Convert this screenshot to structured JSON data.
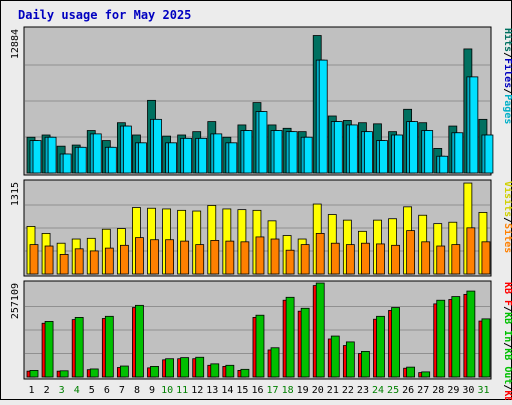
{
  "chart_data": {
    "title": "Daily usage for May 2025",
    "type": "bar",
    "categories": [
      "1",
      "2",
      "3",
      "4",
      "5",
      "6",
      "7",
      "8",
      "9",
      "10",
      "11",
      "12",
      "13",
      "14",
      "15",
      "16",
      "17",
      "18",
      "19",
      "20",
      "21",
      "22",
      "23",
      "24",
      "25",
      "26",
      "27",
      "28",
      "29",
      "30",
      "31"
    ],
    "weekend_days": [
      "3",
      "4",
      "10",
      "11",
      "17",
      "18",
      "24",
      "25",
      "31"
    ],
    "colors": {
      "background": "#ececec",
      "panel": "#c0c0c0",
      "title": "#0000c0",
      "hits": "#007060",
      "files": "#00b0c8",
      "pages": "#00e0ff",
      "visits": "#ffff00",
      "sites": "#ff8000",
      "kb_in": "#00c000",
      "kb_out": "#00ff00",
      "kb_f": "#ff0000",
      "weekday_label": "#000000",
      "weekend_label": "#008000"
    },
    "panels": [
      {
        "name": "hits-files-pages",
        "max_label": "12884",
        "max": 12884,
        "legend": [
          {
            "text": "Hits",
            "color": "#007060"
          },
          {
            "text": "/",
            "color": "#000000"
          },
          {
            "text": "Files",
            "color": "#0000c0"
          },
          {
            "text": "/",
            "color": "#000000"
          },
          {
            "text": "Pages",
            "color": "#00b0c8"
          }
        ],
        "series": [
          {
            "name": "Hits",
            "color": "#007060",
            "values": [
              3200,
              3400,
              2400,
              2500,
              3800,
              2900,
              4500,
              3400,
              6500,
              3300,
              3400,
              3700,
              4600,
              3200,
              4300,
              6300,
              4300,
              4000,
              3700,
              12300,
              5100,
              4700,
              4500,
              4400,
              3700,
              5700,
              4500,
              2200,
              4200,
              11100,
              4800
            ]
          },
          {
            "name": "Files",
            "color": "#00b0c8",
            "values": [
              2900,
              3200,
              1700,
              2300,
              3500,
              2300,
              4200,
              2700,
              4800,
              2700,
              3100,
              3100,
              3500,
              2700,
              3800,
              5500,
              3800,
              3700,
              3200,
              10100,
              4600,
              4300,
              3700,
              2900,
              3400,
              4600,
              3800,
              1500,
              3600,
              8600,
              3400
            ]
          },
          {
            "name": "Pages",
            "color": "#00e0ff",
            "values": [
              2900,
              3200,
              1700,
              2300,
              3500,
              2300,
              4200,
              2700,
              4800,
              2700,
              3100,
              3100,
              3500,
              2700,
              3800,
              5500,
              3800,
              3700,
              3200,
              10100,
              4600,
              4300,
              3700,
              2900,
              3400,
              4600,
              3800,
              1500,
              3600,
              8600,
              3400
            ]
          }
        ]
      },
      {
        "name": "visits-sites",
        "max_label": "1315",
        "max": 1315,
        "legend": [
          {
            "text": "Visits",
            "color": "#d0d000"
          },
          {
            "text": "/",
            "color": "#000000"
          },
          {
            "text": "Sites",
            "color": "#ff8000"
          }
        ],
        "series": [
          {
            "name": "Visits",
            "color": "#ffff00",
            "values": [
              680,
              580,
              440,
              500,
              510,
              640,
              650,
              950,
              940,
              930,
              910,
              900,
              980,
              930,
              920,
              910,
              760,
              550,
              500,
              1000,
              850,
              770,
              610,
              770,
              790,
              960,
              840,
              720,
              740,
              1300,
              880
            ]
          },
          {
            "name": "Sites",
            "color": "#ff8000",
            "values": [
              420,
              400,
              280,
              360,
              330,
              370,
              410,
              520,
              490,
              490,
              470,
              420,
              480,
              470,
              460,
              530,
              500,
              340,
              420,
              580,
              440,
              420,
              440,
              430,
              410,
              620,
              460,
              400,
              420,
              660,
              460
            ]
          }
        ]
      },
      {
        "name": "kb",
        "max_label": "257109",
        "max": 257109,
        "legend": [
          {
            "text": "KB F",
            "color": "#ff0000"
          },
          {
            "text": "/",
            "color": "#000000"
          },
          {
            "text": "KB In",
            "color": "#00c000"
          },
          {
            "text": "/",
            "color": "#000000"
          },
          {
            "text": "KB Out",
            "color": "#00c000"
          },
          {
            "text": "/",
            "color": "#000000"
          },
          {
            "text": "KB F",
            "color": "#ff0000"
          }
        ],
        "series": [
          {
            "name": "KB F",
            "color": "#ff0000",
            "values": [
              16000,
              147000,
              16000,
              157000,
              20000,
              160000,
              26000,
              190000,
              25000,
              47000,
              50000,
              50000,
              32000,
              29000,
              18000,
              163000,
              74000,
              210000,
              180000,
              250000,
              104000,
              86000,
              64000,
              158000,
              182000,
              24000,
              12000,
              200000,
              212000,
              226000,
              153000
            ]
          },
          {
            "name": "KB In",
            "color": "#00c000",
            "values": [
              18000,
              152000,
              17000,
              163000,
              22000,
              166000,
              30000,
              196000,
              29000,
              50000,
              53000,
              54000,
              36000,
              32000,
              21000,
              169000,
              80000,
              218000,
              188000,
              257000,
              112000,
              96000,
              70000,
              166000,
              190000,
              27000,
              14000,
              210000,
              220000,
              235000,
              159000
            ]
          }
        ]
      }
    ]
  }
}
